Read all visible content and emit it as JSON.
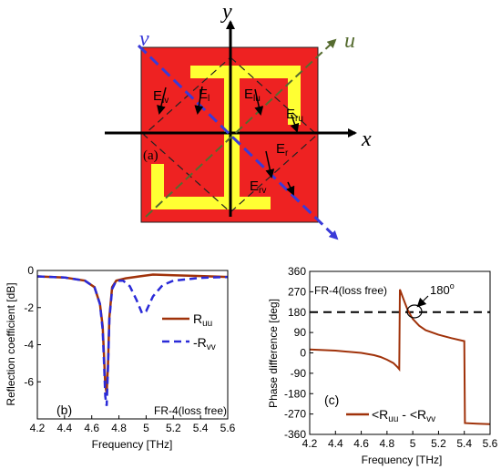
{
  "diagram": {
    "panel_label": "(a)",
    "axes": {
      "x": "x",
      "y": "y",
      "u": "u",
      "v": "v"
    },
    "field_labels": [
      {
        "main": "E",
        "sub": "lv"
      },
      {
        "main": "E",
        "sub": "l"
      },
      {
        "main": "E",
        "sub": "lu"
      },
      {
        "main": "E",
        "sub": "ru"
      },
      {
        "main": "E",
        "sub": "r"
      },
      {
        "main": "E",
        "sub": "rv"
      }
    ],
    "colors": {
      "substrate": "#ee2222",
      "metal": "#ffff33",
      "u_axis": "#556b2f",
      "v_axis": "#3a3ad8"
    }
  },
  "chart_data": [
    {
      "type": "line",
      "panel_label": "(b)",
      "xlabel": "Frequency [THz]",
      "ylabel": "Reflection coefficient [dB]",
      "xlim": [
        4.2,
        5.6
      ],
      "ylim": [
        -8,
        0
      ],
      "xticks": [
        "4.2",
        "4.4",
        "4.6",
        "4.8",
        "5",
        "5.2",
        "5.4",
        "5.6"
      ],
      "yticks": [
        "0",
        "-2",
        "-4",
        "-6"
      ],
      "annotation": "FR-4(loss free)",
      "legend_position": "right",
      "series": [
        {
          "name": "R",
          "name_sub": "uu",
          "color": "#a0320a",
          "style": "solid",
          "x": [
            4.2,
            4.4,
            4.55,
            4.62,
            4.66,
            4.68,
            4.69,
            4.7,
            4.71,
            4.72,
            4.73,
            4.75,
            4.78,
            4.85,
            4.95,
            5.05,
            5.2,
            5.4,
            5.6
          ],
          "y": [
            -0.32,
            -0.38,
            -0.55,
            -0.9,
            -1.8,
            -3.0,
            -4.6,
            -6.2,
            -6.6,
            -5.0,
            -2.5,
            -0.9,
            -0.55,
            -0.42,
            -0.32,
            -0.22,
            -0.26,
            -0.3,
            -0.35
          ]
        },
        {
          "name": "-R",
          "name_sub": "vv",
          "color": "#2a2ad8",
          "style": "dashed",
          "x": [
            4.2,
            4.4,
            4.55,
            4.62,
            4.66,
            4.68,
            4.69,
            4.7,
            4.71,
            4.72,
            4.73,
            4.75,
            4.78,
            4.83,
            4.88,
            4.93,
            4.97,
            5.0,
            5.05,
            5.12,
            5.2,
            5.4,
            5.6
          ],
          "y": [
            -0.32,
            -0.38,
            -0.55,
            -0.9,
            -1.8,
            -3.2,
            -5.0,
            -6.8,
            -7.3,
            -5.2,
            -2.6,
            -1.0,
            -0.55,
            -0.55,
            -0.85,
            -1.6,
            -2.3,
            -2.2,
            -1.4,
            -0.8,
            -0.55,
            -0.4,
            -0.35
          ]
        }
      ]
    },
    {
      "type": "line",
      "panel_label": "(c)",
      "xlabel": "Frequency [THz]",
      "ylabel": "Phase difference [deg]",
      "xlim": [
        4.2,
        5.6
      ],
      "ylim": [
        -360,
        360
      ],
      "xticks": [
        "4.2",
        "4.4",
        "4.6",
        "4.8",
        "5",
        "5.2",
        "5.4",
        "5.6"
      ],
      "yticks": [
        "360",
        "270",
        "180",
        "90",
        "0",
        "-90",
        "-180",
        "-270",
        "-360"
      ],
      "annotation": "FR-4(loss free)",
      "reference_line": {
        "y": 180,
        "label": "180",
        "label_sup": "o",
        "style": "dashed",
        "color": "#000000"
      },
      "legend_position": "bottom-right",
      "series": [
        {
          "name": "<R",
          "name_sub": "uu",
          "name_rest": " - <R",
          "name_rest_sub": "vv",
          "color": "#a0320a",
          "style": "solid",
          "x": [
            4.2,
            4.4,
            4.6,
            4.7,
            4.75,
            4.8,
            4.85,
            4.88,
            4.895,
            4.9,
            4.93,
            4.96,
            5.0,
            5.05,
            5.1,
            5.2,
            5.3,
            5.4,
            5.405,
            5.5,
            5.6
          ],
          "y": [
            15,
            10,
            0,
            -10,
            -18,
            -30,
            -45,
            -62,
            -72,
            280,
            235,
            190,
            150,
            120,
            100,
            80,
            65,
            52,
            -310,
            -313,
            -315
          ]
        }
      ]
    }
  ]
}
